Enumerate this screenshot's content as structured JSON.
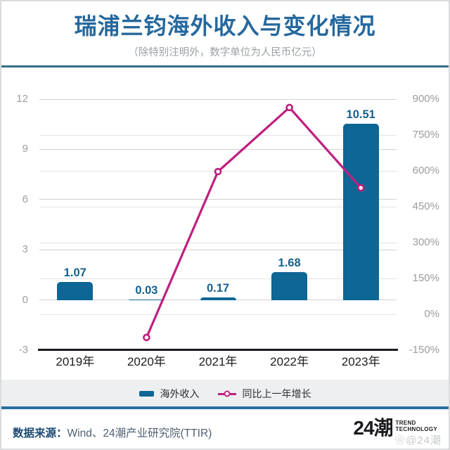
{
  "header": {
    "title": "瑞浦兰钧海外收入与变化情况",
    "subtitle": "（除特别注明外，数字单位为人民币亿元）"
  },
  "chart_data": {
    "type": "bar",
    "title": "瑞浦兰钧海外收入与变化情况",
    "categories": [
      "2019年",
      "2020年",
      "2021年",
      "2022年",
      "2023年"
    ],
    "series": [
      {
        "name": "海外收入",
        "type": "bar",
        "axis": "left",
        "values": [
          1.07,
          0.03,
          0.17,
          1.68,
          10.51
        ],
        "labels": [
          "1.07",
          "0.03",
          "0.17",
          "1.68",
          "10.51"
        ],
        "color": "#0e6694"
      },
      {
        "name": "同比上一年增长",
        "type": "line",
        "axis": "right",
        "x": [
          "2020年",
          "2021年",
          "2022年",
          "2023年"
        ],
        "values": [
          -97,
          597,
          865,
          529
        ],
        "unit": "%",
        "color": "#c01f7f"
      }
    ],
    "left_axis": {
      "min": -3,
      "max": 12,
      "ticks": [
        12,
        9,
        6,
        3,
        0,
        -3
      ]
    },
    "right_axis": {
      "min": -150,
      "max": 900,
      "ticks": [
        900,
        750,
        600,
        450,
        300,
        150,
        0,
        -150
      ],
      "suffix": "%"
    },
    "grid": true,
    "legend_position": "bottom"
  },
  "legend": {
    "bar_label": "海外收入",
    "line_label": "同比上一年增长"
  },
  "footer": {
    "source_label": "数据来源：",
    "source_value": "Wind、24潮产业研究院(TTIR)",
    "logo_text": "24潮",
    "logo_sub1": "TREND",
    "logo_sub2": "TECHNOLOGY",
    "watermark": "❀@24潮"
  },
  "colors": {
    "bar": "#0e6694",
    "bar_label": "#15618d",
    "line": "#c01f7f",
    "title": "#25689e",
    "subtitle": "#9aa0a3",
    "rule_top": "#336d89",
    "rule_bottom": "#2a6f9f",
    "grid": "#d2d2d2",
    "grid_light": "#e4e4e4",
    "axis_line": "#1a1a22",
    "tick_label": "#9d9d9d",
    "x_label": "#202024",
    "band": "#edeff1",
    "source_label": "#1c4a74",
    "source_value": "#4e6173",
    "logo": "#1b1c20",
    "watermark": "rgba(150,156,164,0.55)"
  }
}
